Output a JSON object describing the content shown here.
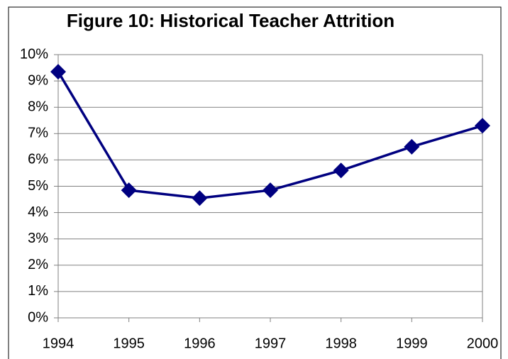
{
  "chart_data": {
    "type": "line",
    "title": "Figure 10: Historical Teacher Attrition",
    "x": [
      1994,
      1995,
      1996,
      1997,
      1998,
      1999,
      2000
    ],
    "values": [
      9.35,
      4.85,
      4.55,
      4.85,
      5.6,
      6.5,
      7.3
    ],
    "color": "#000080",
    "xlim": [
      1994,
      2000
    ],
    "xticks": [
      1994,
      1995,
      1996,
      1997,
      1998,
      1999,
      2000
    ],
    "ylim": [
      0,
      10
    ],
    "yticks": [
      {
        "value": 0,
        "label": "0%"
      },
      {
        "value": 1,
        "label": "1%"
      },
      {
        "value": 2,
        "label": "2%"
      },
      {
        "value": 3,
        "label": "3%"
      },
      {
        "value": 4,
        "label": "4%"
      },
      {
        "value": 5,
        "label": "5%"
      },
      {
        "value": 6,
        "label": "6%"
      },
      {
        "value": 7,
        "label": "7%"
      },
      {
        "value": 8,
        "label": "8%"
      },
      {
        "value": 9,
        "label": "9%"
      },
      {
        "value": 10,
        "label": "10%"
      }
    ],
    "grid": true
  }
}
